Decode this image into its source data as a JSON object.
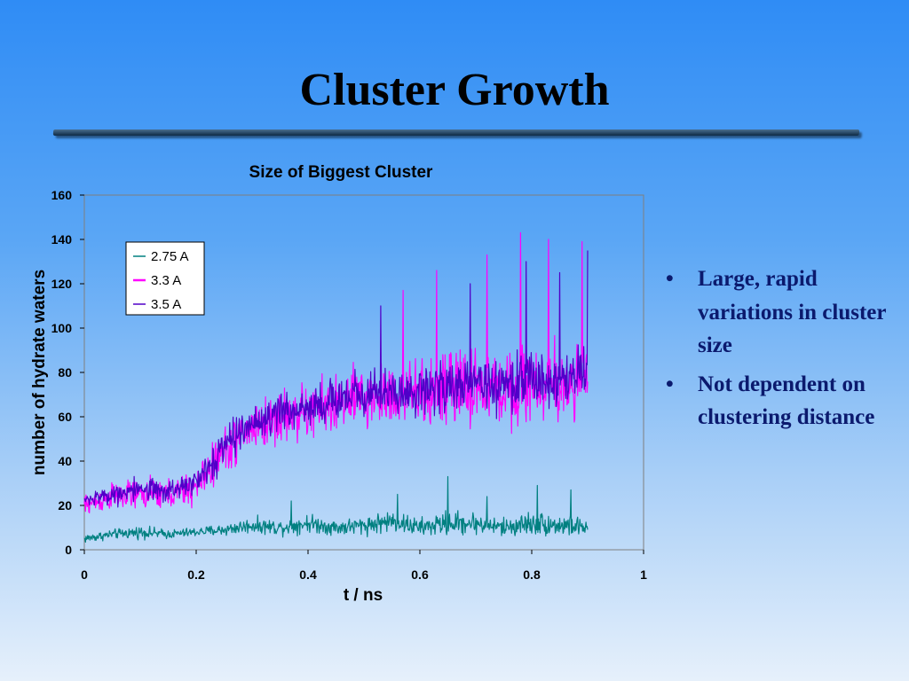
{
  "slide": {
    "title": "Cluster Growth",
    "bullets": [
      "Large, rapid variations in cluster size",
      "Not dependent on clustering distance"
    ],
    "bullet_symbol": "•",
    "colors": {
      "title_rule": "#0e2a45",
      "bullet_text": "#0b1a6e"
    }
  },
  "chart_data": {
    "type": "line",
    "title": "Size of Biggest Cluster",
    "xlabel": "t / ns",
    "ylabel": "number of hydrate waters",
    "xlim": [
      0,
      1
    ],
    "ylim": [
      0,
      160
    ],
    "xticks": [
      "0",
      "0.2",
      "0.4",
      "0.6",
      "0.8",
      "1"
    ],
    "yticks": [
      "0",
      "20",
      "40",
      "60",
      "80",
      "100",
      "120",
      "140",
      "160"
    ],
    "grid": false,
    "legend_position": "top-left",
    "series": [
      {
        "name": "2.75 A",
        "color": "#008080",
        "x": [
          0,
          0.05,
          0.1,
          0.15,
          0.2,
          0.25,
          0.3,
          0.35,
          0.4,
          0.45,
          0.5,
          0.55,
          0.6,
          0.65,
          0.7,
          0.75,
          0.8,
          0.85,
          0.9
        ],
        "y": [
          5,
          7,
          8,
          7,
          8,
          9,
          11,
          10,
          12,
          10,
          11,
          13,
          10,
          12,
          12,
          10,
          12,
          11,
          10
        ],
        "jitter": [
          3,
          3,
          4,
          3,
          3,
          4,
          5,
          5,
          6,
          5,
          6,
          7,
          6,
          8,
          7,
          6,
          8,
          7,
          6
        ],
        "spikes": [
          [
            0.65,
            33
          ],
          [
            0.81,
            29
          ],
          [
            0.87,
            27
          ],
          [
            0.72,
            24
          ],
          [
            0.56,
            25
          ],
          [
            0.37,
            22
          ]
        ]
      },
      {
        "name": "3.3 A",
        "color": "#ff00ff",
        "x": [
          0,
          0.05,
          0.1,
          0.15,
          0.2,
          0.25,
          0.3,
          0.35,
          0.4,
          0.45,
          0.5,
          0.55,
          0.6,
          0.65,
          0.7,
          0.75,
          0.8,
          0.85,
          0.9
        ],
        "y": [
          20,
          24,
          25,
          25,
          28,
          45,
          55,
          60,
          62,
          66,
          68,
          70,
          70,
          72,
          74,
          72,
          75,
          74,
          78
        ],
        "jitter": [
          7,
          9,
          10,
          10,
          12,
          15,
          17,
          18,
          18,
          20,
          22,
          22,
          22,
          24,
          26,
          24,
          27,
          26,
          26
        ],
        "spikes": [
          [
            0.78,
            143
          ],
          [
            0.83,
            140
          ],
          [
            0.89,
            139
          ],
          [
            0.72,
            133
          ],
          [
            0.57,
            117
          ],
          [
            0.63,
            126
          ]
        ]
      },
      {
        "name": "3.5 A",
        "color": "#5000c8",
        "x": [
          0,
          0.05,
          0.1,
          0.15,
          0.2,
          0.25,
          0.3,
          0.35,
          0.4,
          0.45,
          0.5,
          0.55,
          0.6,
          0.65,
          0.7,
          0.75,
          0.8,
          0.85,
          0.9
        ],
        "y": [
          22,
          25,
          26,
          27,
          30,
          47,
          57,
          62,
          64,
          68,
          70,
          72,
          72,
          74,
          76,
          74,
          77,
          76,
          80
        ],
        "jitter": [
          7,
          9,
          10,
          10,
          12,
          15,
          17,
          18,
          18,
          20,
          22,
          22,
          22,
          24,
          26,
          24,
          27,
          26,
          26
        ],
        "spikes": [
          [
            0.79,
            130
          ],
          [
            0.85,
            125
          ],
          [
            0.9,
            135
          ],
          [
            0.69,
            120
          ],
          [
            0.53,
            110
          ]
        ]
      }
    ]
  }
}
